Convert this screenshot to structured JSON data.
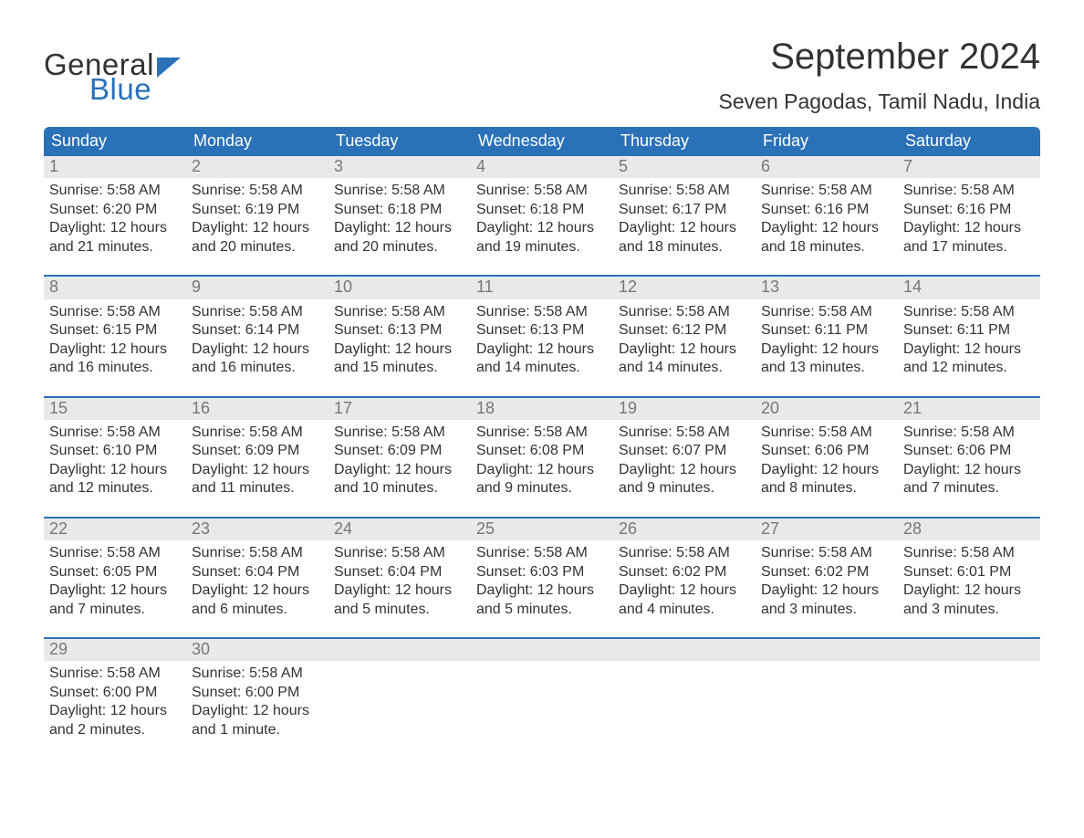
{
  "logo": {
    "line1": "General",
    "line2": "Blue",
    "brand_color": "#2a71b8",
    "text_color": "#333333"
  },
  "header": {
    "month_title": "September 2024",
    "location": "Seven Pagodas, Tamil Nadu, India"
  },
  "colors": {
    "header_bg": "#2a71b8",
    "header_text": "#ffffff",
    "day_number_bg": "#e9e9e9",
    "day_number_text": "#777777",
    "body_text": "#333333",
    "row_divider": "#2a71b8",
    "page_bg": "#ffffff"
  },
  "weekdays": [
    "Sunday",
    "Monday",
    "Tuesday",
    "Wednesday",
    "Thursday",
    "Friday",
    "Saturday"
  ],
  "calendar": {
    "type": "table",
    "columns": 7,
    "weeks": [
      [
        {
          "day": "1",
          "sunrise": "Sunrise: 5:58 AM",
          "sunset": "Sunset: 6:20 PM",
          "daylight1": "Daylight: 12 hours",
          "daylight2": "and 21 minutes."
        },
        {
          "day": "2",
          "sunrise": "Sunrise: 5:58 AM",
          "sunset": "Sunset: 6:19 PM",
          "daylight1": "Daylight: 12 hours",
          "daylight2": "and 20 minutes."
        },
        {
          "day": "3",
          "sunrise": "Sunrise: 5:58 AM",
          "sunset": "Sunset: 6:18 PM",
          "daylight1": "Daylight: 12 hours",
          "daylight2": "and 20 minutes."
        },
        {
          "day": "4",
          "sunrise": "Sunrise: 5:58 AM",
          "sunset": "Sunset: 6:18 PM",
          "daylight1": "Daylight: 12 hours",
          "daylight2": "and 19 minutes."
        },
        {
          "day": "5",
          "sunrise": "Sunrise: 5:58 AM",
          "sunset": "Sunset: 6:17 PM",
          "daylight1": "Daylight: 12 hours",
          "daylight2": "and 18 minutes."
        },
        {
          "day": "6",
          "sunrise": "Sunrise: 5:58 AM",
          "sunset": "Sunset: 6:16 PM",
          "daylight1": "Daylight: 12 hours",
          "daylight2": "and 18 minutes."
        },
        {
          "day": "7",
          "sunrise": "Sunrise: 5:58 AM",
          "sunset": "Sunset: 6:16 PM",
          "daylight1": "Daylight: 12 hours",
          "daylight2": "and 17 minutes."
        }
      ],
      [
        {
          "day": "8",
          "sunrise": "Sunrise: 5:58 AM",
          "sunset": "Sunset: 6:15 PM",
          "daylight1": "Daylight: 12 hours",
          "daylight2": "and 16 minutes."
        },
        {
          "day": "9",
          "sunrise": "Sunrise: 5:58 AM",
          "sunset": "Sunset: 6:14 PM",
          "daylight1": "Daylight: 12 hours",
          "daylight2": "and 16 minutes."
        },
        {
          "day": "10",
          "sunrise": "Sunrise: 5:58 AM",
          "sunset": "Sunset: 6:13 PM",
          "daylight1": "Daylight: 12 hours",
          "daylight2": "and 15 minutes."
        },
        {
          "day": "11",
          "sunrise": "Sunrise: 5:58 AM",
          "sunset": "Sunset: 6:13 PM",
          "daylight1": "Daylight: 12 hours",
          "daylight2": "and 14 minutes."
        },
        {
          "day": "12",
          "sunrise": "Sunrise: 5:58 AM",
          "sunset": "Sunset: 6:12 PM",
          "daylight1": "Daylight: 12 hours",
          "daylight2": "and 14 minutes."
        },
        {
          "day": "13",
          "sunrise": "Sunrise: 5:58 AM",
          "sunset": "Sunset: 6:11 PM",
          "daylight1": "Daylight: 12 hours",
          "daylight2": "and 13 minutes."
        },
        {
          "day": "14",
          "sunrise": "Sunrise: 5:58 AM",
          "sunset": "Sunset: 6:11 PM",
          "daylight1": "Daylight: 12 hours",
          "daylight2": "and 12 minutes."
        }
      ],
      [
        {
          "day": "15",
          "sunrise": "Sunrise: 5:58 AM",
          "sunset": "Sunset: 6:10 PM",
          "daylight1": "Daylight: 12 hours",
          "daylight2": "and 12 minutes."
        },
        {
          "day": "16",
          "sunrise": "Sunrise: 5:58 AM",
          "sunset": "Sunset: 6:09 PM",
          "daylight1": "Daylight: 12 hours",
          "daylight2": "and 11 minutes."
        },
        {
          "day": "17",
          "sunrise": "Sunrise: 5:58 AM",
          "sunset": "Sunset: 6:09 PM",
          "daylight1": "Daylight: 12 hours",
          "daylight2": "and 10 minutes."
        },
        {
          "day": "18",
          "sunrise": "Sunrise: 5:58 AM",
          "sunset": "Sunset: 6:08 PM",
          "daylight1": "Daylight: 12 hours",
          "daylight2": "and 9 minutes."
        },
        {
          "day": "19",
          "sunrise": "Sunrise: 5:58 AM",
          "sunset": "Sunset: 6:07 PM",
          "daylight1": "Daylight: 12 hours",
          "daylight2": "and 9 minutes."
        },
        {
          "day": "20",
          "sunrise": "Sunrise: 5:58 AM",
          "sunset": "Sunset: 6:06 PM",
          "daylight1": "Daylight: 12 hours",
          "daylight2": "and 8 minutes."
        },
        {
          "day": "21",
          "sunrise": "Sunrise: 5:58 AM",
          "sunset": "Sunset: 6:06 PM",
          "daylight1": "Daylight: 12 hours",
          "daylight2": "and 7 minutes."
        }
      ],
      [
        {
          "day": "22",
          "sunrise": "Sunrise: 5:58 AM",
          "sunset": "Sunset: 6:05 PM",
          "daylight1": "Daylight: 12 hours",
          "daylight2": "and 7 minutes."
        },
        {
          "day": "23",
          "sunrise": "Sunrise: 5:58 AM",
          "sunset": "Sunset: 6:04 PM",
          "daylight1": "Daylight: 12 hours",
          "daylight2": "and 6 minutes."
        },
        {
          "day": "24",
          "sunrise": "Sunrise: 5:58 AM",
          "sunset": "Sunset: 6:04 PM",
          "daylight1": "Daylight: 12 hours",
          "daylight2": "and 5 minutes."
        },
        {
          "day": "25",
          "sunrise": "Sunrise: 5:58 AM",
          "sunset": "Sunset: 6:03 PM",
          "daylight1": "Daylight: 12 hours",
          "daylight2": "and 5 minutes."
        },
        {
          "day": "26",
          "sunrise": "Sunrise: 5:58 AM",
          "sunset": "Sunset: 6:02 PM",
          "daylight1": "Daylight: 12 hours",
          "daylight2": "and 4 minutes."
        },
        {
          "day": "27",
          "sunrise": "Sunrise: 5:58 AM",
          "sunset": "Sunset: 6:02 PM",
          "daylight1": "Daylight: 12 hours",
          "daylight2": "and 3 minutes."
        },
        {
          "day": "28",
          "sunrise": "Sunrise: 5:58 AM",
          "sunset": "Sunset: 6:01 PM",
          "daylight1": "Daylight: 12 hours",
          "daylight2": "and 3 minutes."
        }
      ],
      [
        {
          "day": "29",
          "sunrise": "Sunrise: 5:58 AM",
          "sunset": "Sunset: 6:00 PM",
          "daylight1": "Daylight: 12 hours",
          "daylight2": "and 2 minutes."
        },
        {
          "day": "30",
          "sunrise": "Sunrise: 5:58 AM",
          "sunset": "Sunset: 6:00 PM",
          "daylight1": "Daylight: 12 hours",
          "daylight2": "and 1 minute."
        },
        {
          "empty": true
        },
        {
          "empty": true
        },
        {
          "empty": true
        },
        {
          "empty": true
        },
        {
          "empty": true
        }
      ]
    ]
  }
}
